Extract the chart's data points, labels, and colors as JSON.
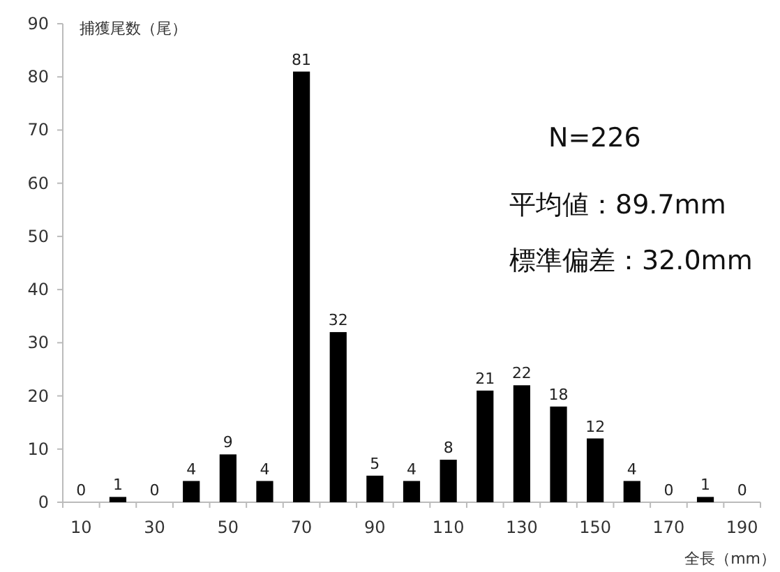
{
  "chart_data": {
    "type": "bar",
    "ylabel": "捕獲尾数（尾）",
    "xlabel": "全長（mm）",
    "categories": [
      "10",
      null,
      "30",
      null,
      "50",
      null,
      "70",
      null,
      "90",
      null,
      "110",
      null,
      "130",
      null,
      "150",
      null,
      "170",
      null,
      "190"
    ],
    "values": [
      0,
      1,
      0,
      4,
      9,
      4,
      81,
      32,
      5,
      4,
      8,
      21,
      22,
      18,
      12,
      4,
      0,
      1,
      0
    ],
    "color": "#000000",
    "ylim": [
      0,
      90
    ],
    "yticks": [
      0,
      10,
      20,
      30,
      40,
      50,
      60,
      70,
      80,
      90
    ],
    "data_labels": true,
    "grid": false,
    "annotations": [
      "N=226",
      "平均値：89.7mm",
      "標準偏差：32.0mm"
    ]
  }
}
